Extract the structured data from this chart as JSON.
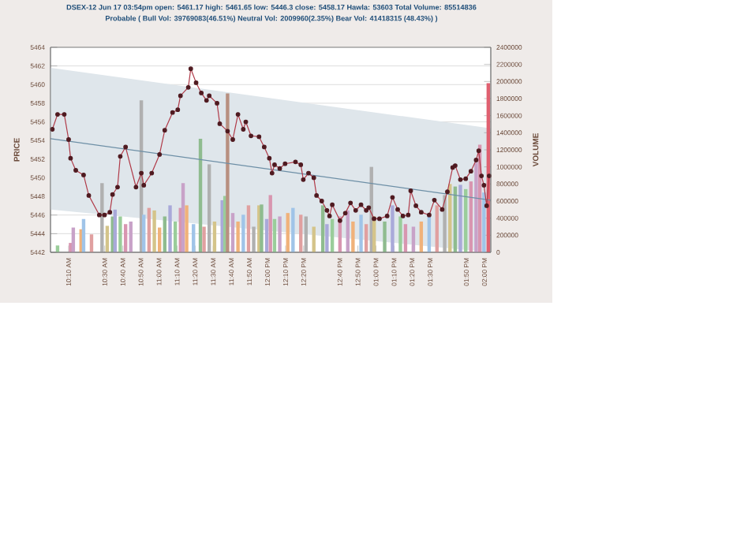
{
  "chart_data": {
    "type": "line",
    "title": "DSEX-12 Jun 17 03:54pm  open: 5461.17  high: 5461.65  low: 5446.3  close: 5458.17  Hawla: 53603  Total Volume: 85514836",
    "subtitle": "Probable ( Bull Vol: 39769083(46.51%) Neutral Vol: 2009960(2.35%)  Bear Vol: 41418315 (48.43%) )",
    "ylabel": "PRICE",
    "y2label": "VOLUME",
    "xlim": [
      10.0,
      14.058
    ],
    "ylim": [
      5442,
      5464
    ],
    "y2lim": [
      0,
      2400000
    ],
    "xticks": [
      {
        "value": 10.167,
        "label": "10:10 AM"
      },
      {
        "value": 10.5,
        "label": "10:30 AM"
      },
      {
        "value": 10.667,
        "label": "10:40 AM"
      },
      {
        "value": 10.833,
        "label": "10:50 AM"
      },
      {
        "value": 11.0,
        "label": "11:00 AM"
      },
      {
        "value": 11.167,
        "label": "11:10 AM"
      },
      {
        "value": 11.333,
        "label": "11:20 AM"
      },
      {
        "value": 11.5,
        "label": "11:30 AM"
      },
      {
        "value": 11.667,
        "label": "11:40 AM"
      },
      {
        "value": 11.833,
        "label": "11:50 AM"
      },
      {
        "value": 12.0,
        "label": "12:00 PM"
      },
      {
        "value": 12.167,
        "label": "12:10 PM"
      },
      {
        "value": 12.333,
        "label": "12:20 PM"
      },
      {
        "value": 12.667,
        "label": "12:40 PM"
      },
      {
        "value": 12.833,
        "label": "12:50 PM"
      },
      {
        "value": 13.0,
        "label": "01:00 PM"
      },
      {
        "value": 13.167,
        "label": "01:10 PM"
      },
      {
        "value": 13.333,
        "label": "01:20 PM"
      },
      {
        "value": 13.5,
        "label": "01:30 PM"
      },
      {
        "value": 13.833,
        "label": "01:50 PM"
      },
      {
        "value": 14.0,
        "label": "02:00 PM"
      }
    ],
    "yticks": [
      5442,
      5444,
      5446,
      5448,
      5450,
      5452,
      5454,
      5456,
      5458,
      5460,
      5462,
      5464
    ],
    "y2ticks": [
      0,
      200000,
      400000,
      600000,
      800000,
      1000000,
      1200000,
      1400000,
      1600000,
      1800000,
      2000000,
      2200000,
      2400000
    ],
    "grid": "y",
    "marker": "circle",
    "series": [
      {
        "type": "bar",
        "axis": "y2",
        "x": [
          10.065,
          10.185,
          10.21,
          10.282,
          10.305,
          10.378,
          10.475,
          10.523,
          10.572,
          10.595,
          10.643,
          10.692,
          10.74,
          10.837,
          10.86,
          10.908,
          10.957,
          11.005,
          11.053,
          11.102,
          11.15,
          11.198,
          11.222,
          11.255,
          11.318,
          11.382,
          11.415,
          11.463,
          11.512,
          11.583,
          11.608,
          11.632,
          11.68,
          11.728,
          11.777,
          11.825,
          11.873,
          11.922,
          11.945,
          11.993,
          12.027,
          12.065,
          12.113,
          12.187,
          12.235,
          12.307,
          12.355,
          12.427,
          12.51,
          12.548,
          12.597,
          12.668,
          12.74,
          12.788,
          12.862,
          12.91,
          12.958,
          12.983,
          13.08,
          13.152,
          13.225,
          13.272,
          13.345,
          13.417,
          13.49,
          13.562,
          13.633,
          13.682,
          13.73,
          13.778,
          13.827,
          13.875,
          13.923,
          13.957,
          13.995,
          14.035
        ],
        "values": [
          80000,
          110000,
          290000,
          270000,
          390000,
          210000,
          810000,
          310000,
          420000,
          500000,
          420000,
          330000,
          360000,
          1780000,
          440000,
          520000,
          490000,
          290000,
          420000,
          550000,
          360000,
          520000,
          810000,
          550000,
          330000,
          1330000,
          300000,
          1030000,
          360000,
          610000,
          660000,
          1860000,
          460000,
          360000,
          440000,
          550000,
          300000,
          550000,
          560000,
          390000,
          670000,
          390000,
          420000,
          460000,
          520000,
          440000,
          420000,
          300000,
          550000,
          330000,
          390000,
          420000,
          490000,
          360000,
          440000,
          330000,
          1000000,
          420000,
          360000,
          550000,
          420000,
          330000,
          300000,
          360000,
          420000,
          550000,
          670000,
          800000,
          770000,
          790000,
          740000,
          830000,
          1050000,
          1260000,
          700000,
          1980000
        ],
        "colors": [
          "#9acd9a",
          "#d896b0",
          "#c8a2c8",
          "#f0b27a",
          "#a0c4e8",
          "#e0a0a0",
          "#b0b0b0",
          "#d4c48a",
          "#8fbc8f",
          "#a9a9d9",
          "#9acd9a",
          "#d896b0",
          "#c8a2c8",
          "#b0b0b0",
          "#a0c4e8",
          "#e0a0a0",
          "#d4c48a",
          "#f0b27a",
          "#8fbc8f",
          "#a9a9d9",
          "#9acd9a",
          "#d896b0",
          "#c8a2c8",
          "#f0b27a",
          "#a0c4e8",
          "#8fbc8f",
          "#e0a0a0",
          "#b0b0b0",
          "#d4c48a",
          "#a9a9d9",
          "#9acd9a",
          "#b89080",
          "#c8a2c8",
          "#f0b27a",
          "#a0c4e8",
          "#e0a0a0",
          "#b0b0b0",
          "#d4c48a",
          "#8fbc8f",
          "#a9a9d9",
          "#d896b0",
          "#9acd9a",
          "#c8a2c8",
          "#f0b27a",
          "#a0c4e8",
          "#e0a0a0",
          "#b0b0b0",
          "#d4c48a",
          "#8fbc8f",
          "#a9a9d9",
          "#9acd9a",
          "#d896b0",
          "#c8a2c8",
          "#f0b27a",
          "#a0c4e8",
          "#e0a0a0",
          "#b0b0b0",
          "#d4c48a",
          "#8fbc8f",
          "#a9a9d9",
          "#9acd9a",
          "#d896b0",
          "#c8a2c8",
          "#f0b27a",
          "#a0c4e8",
          "#e0a0a0",
          "#b0b0b0",
          "#d4c48a",
          "#8fbc8f",
          "#a9a9d9",
          "#9acd9a",
          "#d896b0",
          "#c8a2c8",
          "#d896b0",
          "#a0c4e8",
          "#e06070"
        ]
      },
      {
        "color": "#6d8fa6",
        "marker": "none",
        "x": [
          10.0,
          14.058
        ],
        "values": [
          5454.2,
          5447.6
        ],
        "upper": [
          5461.8,
          5455.3
        ],
        "lower": [
          5446.6,
          5442.0
        ]
      },
      {
        "color": "#b03a48",
        "x": [
          10.017,
          10.065,
          10.127,
          10.167,
          10.185,
          10.233,
          10.305,
          10.353,
          10.45,
          10.498,
          10.547,
          10.572,
          10.618,
          10.643,
          10.692,
          10.788,
          10.837,
          10.86,
          10.933,
          11.005,
          11.053,
          11.125,
          11.173,
          11.198,
          11.27,
          11.293,
          11.342,
          11.39,
          11.438,
          11.463,
          11.535,
          11.56,
          11.632,
          11.68,
          11.728,
          11.777,
          11.8,
          11.848,
          11.922,
          11.97,
          12.017,
          12.042,
          12.065,
          12.113,
          12.162,
          12.258,
          12.307,
          12.33,
          12.378,
          12.427,
          12.452,
          12.5,
          12.548,
          12.572,
          12.597,
          12.668,
          12.717,
          12.765,
          12.813,
          12.862,
          12.91,
          12.933,
          12.982,
          13.032,
          13.103,
          13.152,
          13.2,
          13.248,
          13.297,
          13.32,
          13.368,
          13.417,
          13.49,
          13.538,
          13.61,
          13.658,
          13.707,
          13.73,
          13.778,
          13.827,
          13.875,
          13.923,
          13.947,
          13.972,
          13.995,
          14.02,
          14.043
        ],
        "values": [
          5455.2,
          5456.8,
          5456.8,
          5454.1,
          5452.1,
          5450.8,
          5450.3,
          5448.1,
          5446.0,
          5446.0,
          5446.3,
          5448.2,
          5449.0,
          5452.3,
          5453.3,
          5449.0,
          5450.5,
          5449.2,
          5450.5,
          5452.5,
          5455.1,
          5457.0,
          5457.3,
          5458.8,
          5459.7,
          5461.7,
          5460.2,
          5459.1,
          5458.3,
          5458.8,
          5458.0,
          5455.8,
          5455.0,
          5454.1,
          5456.8,
          5455.2,
          5456.0,
          5454.5,
          5454.4,
          5453.3,
          5452.1,
          5450.5,
          5451.4,
          5451.0,
          5451.5,
          5451.7,
          5451.4,
          5449.8,
          5450.5,
          5450.0,
          5448.1,
          5447.5,
          5446.5,
          5445.9,
          5447.1,
          5445.4,
          5446.2,
          5447.3,
          5446.5,
          5447.1,
          5446.5,
          5446.8,
          5445.6,
          5445.6,
          5445.9,
          5447.9,
          5446.6,
          5445.9,
          5446.0,
          5448.6,
          5447.0,
          5446.3,
          5446.0,
          5447.6,
          5446.6,
          5448.5,
          5451.1,
          5451.3,
          5449.8,
          5449.9,
          5450.7,
          5451.9,
          5452.9,
          5450.2,
          5449.2,
          5447.0,
          5450.2
        ]
      }
    ]
  }
}
